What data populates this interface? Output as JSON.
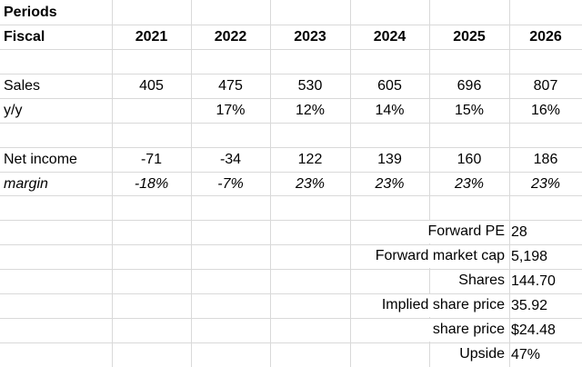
{
  "header": {
    "title": "Periods",
    "row_label": "Fiscal",
    "years": [
      "2021",
      "2022",
      "2023",
      "2024",
      "2025",
      "2026"
    ]
  },
  "rows": [
    {
      "label": "Sales",
      "values": [
        "405",
        "475",
        "530",
        "605",
        "696",
        "807"
      ]
    },
    {
      "label": "y/y",
      "values": [
        null,
        "17%",
        "12%",
        "14%",
        "15%",
        "16%"
      ]
    },
    {
      "label": "Net income",
      "values": [
        "-71",
        "-34",
        "122",
        "139",
        "160",
        "186"
      ]
    },
    {
      "label": "margin",
      "values": [
        "-18%",
        "-7%",
        "23%",
        "23%",
        "23%",
        "23%"
      ]
    }
  ],
  "summary": [
    {
      "label": "Forward PE",
      "value": "28"
    },
    {
      "label": "Forward market cap",
      "value": "5,198"
    },
    {
      "label": "Shares",
      "value": "144.70"
    },
    {
      "label": "Implied share price",
      "value": "35.92"
    },
    {
      "label": "share price",
      "value": "$24.48"
    },
    {
      "label": "Upside",
      "value": "47%"
    }
  ]
}
